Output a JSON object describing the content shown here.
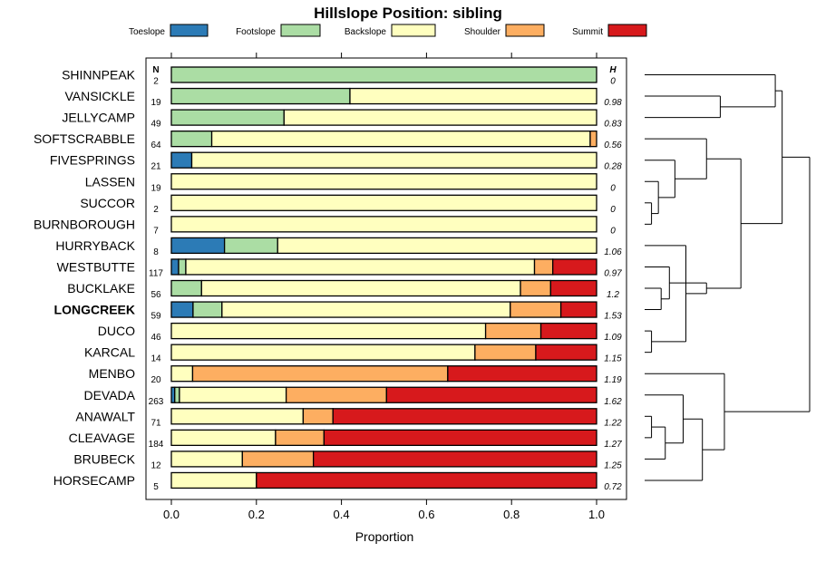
{
  "chart_data": {
    "type": "stacked-bar",
    "title": "Hillslope Position: sibling",
    "xlabel": "Proportion",
    "xlim": [
      0,
      1
    ],
    "xticks": [
      "0.0",
      "0.2",
      "0.4",
      "0.6",
      "0.8",
      "1.0"
    ],
    "xtick_values": [
      0,
      0.2,
      0.4,
      0.6,
      0.8,
      1.0
    ],
    "count_header": "N",
    "h_header": "H",
    "series": [
      {
        "name": "Toeslope",
        "color": "#2c7bb6"
      },
      {
        "name": "Footslope",
        "color": "#abdda4"
      },
      {
        "name": "Backslope",
        "color": "#ffffbf"
      },
      {
        "name": "Shoulder",
        "color": "#fdae61"
      },
      {
        "name": "Summit",
        "color": "#d7191c"
      }
    ],
    "rows": [
      {
        "name": "SHINNPEAK",
        "n": "2",
        "h": "0",
        "bold": false,
        "values": [
          0,
          1.0,
          0,
          0,
          0
        ]
      },
      {
        "name": "VANSICKLE",
        "n": "19",
        "h": "0.98",
        "bold": false,
        "values": [
          0,
          0.42,
          0.58,
          0,
          0
        ]
      },
      {
        "name": "JELLYCAMP",
        "n": "49",
        "h": "0.83",
        "bold": false,
        "values": [
          0,
          0.265,
          0.735,
          0,
          0
        ]
      },
      {
        "name": "SOFTSCRABBLE",
        "n": "64",
        "h": "0.56",
        "bold": false,
        "values": [
          0,
          0.095,
          0.89,
          0.015,
          0
        ]
      },
      {
        "name": "FIVESPRINGS",
        "n": "21",
        "h": "0.28",
        "bold": false,
        "values": [
          0.048,
          0,
          0.952,
          0,
          0
        ]
      },
      {
        "name": "LASSEN",
        "n": "19",
        "h": "0",
        "bold": false,
        "values": [
          0,
          0,
          1.0,
          0,
          0
        ]
      },
      {
        "name": "SUCCOR",
        "n": "2",
        "h": "0",
        "bold": false,
        "values": [
          0,
          0,
          1.0,
          0,
          0
        ]
      },
      {
        "name": "BURNBOROUGH",
        "n": "7",
        "h": "0",
        "bold": false,
        "values": [
          0,
          0,
          1.0,
          0,
          0
        ]
      },
      {
        "name": "HURRYBACK",
        "n": "8",
        "h": "1.06",
        "bold": false,
        "values": [
          0.125,
          0.125,
          0.75,
          0,
          0
        ]
      },
      {
        "name": "WESTBUTTE",
        "n": "117",
        "h": "0.97",
        "bold": false,
        "values": [
          0.017,
          0.017,
          0.82,
          0.043,
          0.103
        ]
      },
      {
        "name": "BUCKLAKE",
        "n": "56",
        "h": "1.2",
        "bold": false,
        "values": [
          0,
          0.071,
          0.75,
          0.071,
          0.108
        ]
      },
      {
        "name": "LONGCREEK",
        "n": "59",
        "h": "1.53",
        "bold": true,
        "values": [
          0.051,
          0.068,
          0.678,
          0.119,
          0.084
        ]
      },
      {
        "name": "DUCO",
        "n": "46",
        "h": "1.09",
        "bold": false,
        "values": [
          0,
          0,
          0.739,
          0.13,
          0.131
        ]
      },
      {
        "name": "KARCAL",
        "n": "14",
        "h": "1.15",
        "bold": false,
        "values": [
          0,
          0,
          0.714,
          0.143,
          0.143
        ]
      },
      {
        "name": "MENBO",
        "n": "20",
        "h": "1.19",
        "bold": false,
        "values": [
          0,
          0,
          0.05,
          0.6,
          0.35
        ]
      },
      {
        "name": "DEVADA",
        "n": "263",
        "h": "1.62",
        "bold": false,
        "values": [
          0.008,
          0.011,
          0.251,
          0.236,
          0.494
        ]
      },
      {
        "name": "ANAWALT",
        "n": "71",
        "h": "1.22",
        "bold": false,
        "values": [
          0,
          0,
          0.31,
          0.07,
          0.62
        ]
      },
      {
        "name": "CLEAVAGE",
        "n": "184",
        "h": "1.27",
        "bold": false,
        "values": [
          0,
          0,
          0.245,
          0.114,
          0.641
        ]
      },
      {
        "name": "BRUBECK",
        "n": "12",
        "h": "1.25",
        "bold": false,
        "values": [
          0,
          0,
          0.167,
          0.167,
          0.666
        ]
      },
      {
        "name": "HORSECAMP",
        "n": "5",
        "h": "0.72",
        "bold": false,
        "values": [
          0,
          0,
          0.2,
          0,
          0.8
        ]
      }
    ],
    "dendrogram": {
      "type": "hierarchical-clustering",
      "merges": [
        [
          6,
          7,
          0.05
        ],
        [
          5,
          20,
          0.1
        ],
        [
          4,
          21,
          0.22
        ],
        [
          3,
          22,
          0.45
        ],
        [
          1,
          2,
          0.55
        ],
        [
          0,
          24,
          0.95
        ],
        [
          12,
          13,
          0.05
        ],
        [
          10,
          11,
          0.12
        ],
        [
          9,
          27,
          0.18
        ],
        [
          8,
          26,
          0.3
        ],
        [
          29,
          28,
          0.45
        ],
        [
          23,
          30,
          0.7
        ],
        [
          25,
          31,
          1.0
        ],
        [
          16,
          17,
          0.05
        ],
        [
          18,
          33,
          0.15
        ],
        [
          15,
          34,
          0.28
        ],
        [
          19,
          35,
          0.42
        ],
        [
          14,
          36,
          0.58
        ],
        [
          32,
          37,
          1.2
        ]
      ]
    }
  }
}
